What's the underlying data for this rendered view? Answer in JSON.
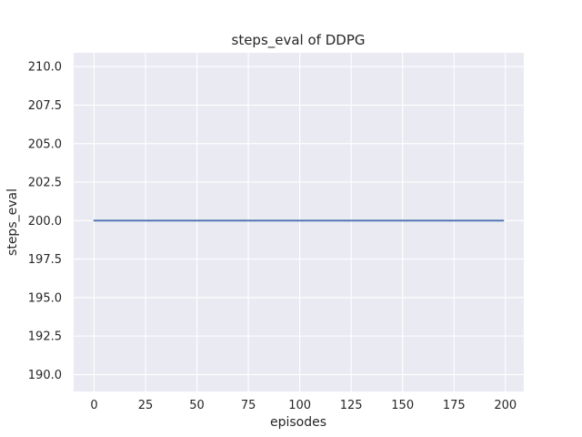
{
  "chart_data": {
    "type": "line",
    "title": "steps_eval of DDPG",
    "xlabel": "episodes",
    "ylabel": "steps_eval",
    "x_tick_labels": [
      "0",
      "25",
      "50",
      "75",
      "100",
      "125",
      "150",
      "175",
      "200"
    ],
    "x_ticks": [
      0,
      25,
      50,
      75,
      100,
      125,
      150,
      175,
      200
    ],
    "y_tick_labels": [
      "190.0",
      "192.5",
      "195.0",
      "197.5",
      "200.0",
      "202.5",
      "205.0",
      "207.5",
      "210.0"
    ],
    "y_ticks": [
      190.0,
      192.5,
      195.0,
      197.5,
      200.0,
      202.5,
      205.0,
      207.5,
      210.0
    ],
    "xlim": [
      -9.95,
      208.95
    ],
    "ylim": [
      188.9,
      210.9
    ],
    "grid": true,
    "legend_position": "none",
    "style": {
      "plot_bg_color": "#EAEAF2",
      "grid_color": "#FFFFFF",
      "text_color": "#262626",
      "figure_bg_color": "#FFFFFF"
    },
    "series": [
      {
        "name": "steps_eval",
        "color": "#4C72B0",
        "x": [
          0,
          199
        ],
        "y": [
          200,
          200
        ]
      }
    ]
  }
}
